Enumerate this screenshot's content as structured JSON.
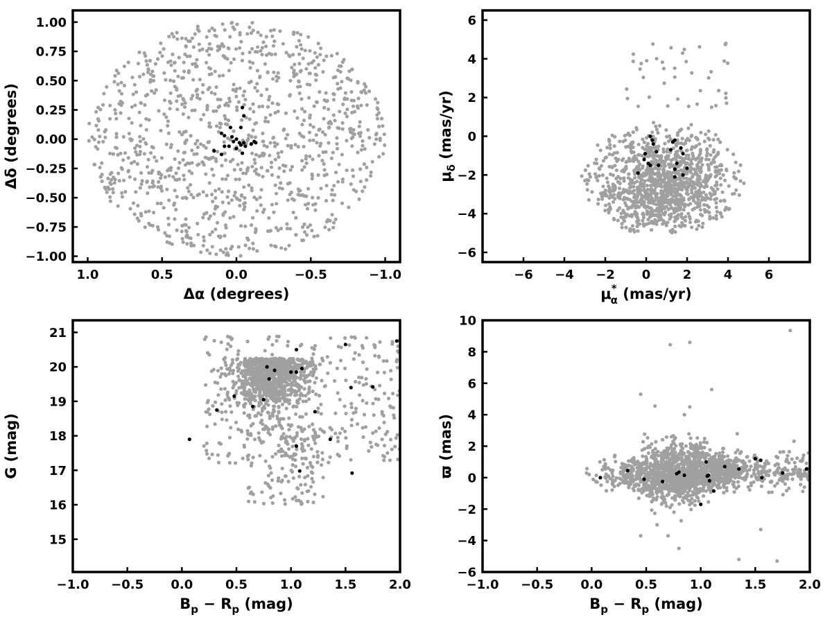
{
  "chart_data": [
    {
      "type": "scatter",
      "xlabel": "Δα (degrees)",
      "ylabel": "Δδ (degrees)",
      "xlim": [
        1.1,
        -1.1
      ],
      "ylim": [
        -1.05,
        1.1
      ],
      "xticks": [
        1.0,
        0.5,
        0.0,
        -0.5,
        -1.0
      ],
      "xtick_labels": [
        "1.0",
        "0.5",
        "0.0",
        "−0.5",
        "−1.0"
      ],
      "yticks": [
        -1.0,
        -0.75,
        -0.5,
        -0.25,
        0.0,
        0.25,
        0.5,
        0.75,
        1.0
      ],
      "ytick_labels": [
        "−1.00",
        "−0.75",
        "−0.50",
        "−0.25",
        "0.00",
        "0.25",
        "0.50",
        "0.75",
        "1.00"
      ],
      "series": [
        {
          "color": "#a0a0a0",
          "distribution": "uniform disk radius 1.0 degree centred at (0,0)",
          "count": 1100
        },
        {
          "color": "#000000",
          "points": [
            [
              0.1,
              0.05
            ],
            [
              0.08,
              0.03
            ],
            [
              0.0,
              0.0
            ],
            [
              -0.02,
              -0.03
            ],
            [
              0.05,
              -0.06
            ],
            [
              -0.03,
              0.1
            ],
            [
              -0.04,
              0.27
            ],
            [
              -0.05,
              0.2
            ],
            [
              0.15,
              -0.1
            ],
            [
              0.08,
              -0.06
            ],
            [
              0.1,
              -0.13
            ],
            [
              -0.04,
              -0.12
            ],
            [
              -0.05,
              -0.03
            ],
            [
              -0.1,
              -0.04
            ],
            [
              -0.12,
              -0.02
            ],
            [
              -0.13,
              -0.03
            ],
            [
              -0.03,
              -0.05
            ],
            [
              0.02,
              -0.02
            ],
            [
              0.04,
              0.1
            ],
            [
              0.0,
              -0.08
            ],
            [
              -0.06,
              -0.06
            ],
            [
              0.03,
              0.02
            ]
          ]
        }
      ]
    },
    {
      "type": "scatter",
      "xlabel_main": "μ",
      "xlabel_sub": "α",
      "xlabel_sup": "*",
      "xlabel_rest": " (mas/yr)",
      "ylabel_main": "μ",
      "ylabel_sub": "δ",
      "ylabel_rest": " (mas/yr)",
      "xlim": [
        -8,
        8
      ],
      "ylim": [
        -6.5,
        6.5
      ],
      "xticks": [
        -6,
        -4,
        -2,
        0,
        2,
        4,
        6
      ],
      "xtick_labels": [
        "−6",
        "−4",
        "−2",
        "0",
        "2",
        "4",
        "6"
      ],
      "yticks": [
        -6,
        -4,
        -2,
        0,
        2,
        4,
        6
      ],
      "ytick_labels": [
        "−6",
        "−4",
        "−2",
        "0",
        "2",
        "4",
        "6"
      ],
      "series": [
        {
          "color": "#a0a0a0",
          "distribution": "field stars, cloud centred near (1,-2.5), radius ~4 mas/yr, denser toward bottom",
          "count": 1200
        },
        {
          "color": "#000000",
          "points": [
            [
              -0.4,
              -1.9
            ],
            [
              -0.1,
              -1.2
            ],
            [
              -0.05,
              -0.9
            ],
            [
              0.1,
              -1.4
            ],
            [
              0.2,
              -1.5
            ],
            [
              0.3,
              -0.2
            ],
            [
              0.35,
              -0.4
            ],
            [
              0.5,
              -0.8
            ],
            [
              0.6,
              -1.5
            ],
            [
              1.2,
              -0.7
            ],
            [
              1.3,
              -0.3
            ],
            [
              1.4,
              -0.2
            ],
            [
              1.4,
              -1.7
            ],
            [
              1.4,
              -2.1
            ],
            [
              1.7,
              -0.6
            ],
            [
              1.8,
              -0.9
            ],
            [
              1.8,
              -2.0
            ],
            [
              2.0,
              -1.65
            ],
            [
              1.5,
              -1.4
            ],
            [
              0.2,
              0.0
            ]
          ]
        }
      ]
    },
    {
      "type": "scatter",
      "xlabel_main": "B",
      "xlabel_sub1": "p",
      "xlabel_mid": " − R",
      "xlabel_sub2": "p",
      "xlabel_rest": " (mag)",
      "ylabel": "G (mag)",
      "xlim": [
        -1.0,
        2.0
      ],
      "ylim": [
        14.05,
        21.35
      ],
      "xticks": [
        -1.0,
        -0.5,
        0.0,
        0.5,
        1.0,
        1.5,
        2.0
      ],
      "xtick_labels": [
        "−1.0",
        "−0.5",
        "0.0",
        "0.5",
        "1.0",
        "1.5",
        "2.0"
      ],
      "yticks": [
        15,
        16,
        17,
        18,
        19,
        20,
        21
      ],
      "ytick_labels": [
        "15",
        "16",
        "17",
        "18",
        "19",
        "20",
        "21"
      ],
      "series": [
        {
          "color": "#a0a0a0",
          "distribution": "colour-magnitude diagram of field stars, dense near Bp-Rp 0.8, G 20.3",
          "count": 1200
        },
        {
          "color": "#000000",
          "points": [
            [
              0.07,
              17.9
            ],
            [
              0.32,
              18.75
            ],
            [
              0.48,
              19.15
            ],
            [
              0.65,
              18.85
            ],
            [
              0.75,
              19.05
            ],
            [
              0.78,
              20.0
            ],
            [
              0.8,
              19.65
            ],
            [
              0.85,
              19.9
            ],
            [
              1.0,
              19.85
            ],
            [
              1.05,
              19.85
            ],
            [
              1.05,
              20.5
            ],
            [
              1.1,
              19.95
            ],
            [
              1.05,
              17.7
            ],
            [
              1.08,
              16.98
            ],
            [
              1.22,
              18.7
            ],
            [
              1.36,
              17.9
            ],
            [
              1.5,
              20.65
            ],
            [
              1.55,
              19.4
            ],
            [
              1.56,
              16.92
            ],
            [
              1.75,
              19.42
            ],
            [
              1.97,
              20.75
            ]
          ]
        }
      ]
    },
    {
      "type": "scatter",
      "xlabel_main": "B",
      "xlabel_sub1": "p",
      "xlabel_mid": " − R",
      "xlabel_sub2": "p",
      "xlabel_rest": " (mag)",
      "ylabel": "ϖ (mas)",
      "xlim": [
        -1.0,
        2.0
      ],
      "ylim": [
        -6.0,
        10.0
      ],
      "xticks": [
        -1.0,
        -0.5,
        0.0,
        0.5,
        1.0,
        1.5,
        2.0
      ],
      "xtick_labels": [
        "−1.0",
        "−0.5",
        "0.0",
        "0.5",
        "1.0",
        "1.5",
        "2.0"
      ],
      "yticks": [
        -6,
        -4,
        -2,
        0,
        2,
        4,
        6,
        8,
        10
      ],
      "ytick_labels": [
        "−6",
        "−4",
        "−2",
        "0",
        "2",
        "4",
        "6",
        "8",
        "10"
      ],
      "series": [
        {
          "color": "#a0a0a0",
          "distribution": "parallax vs colour, band centred near ϖ 0, wider scatter at Bp-Rp 0.5-1.0",
          "count": 1400
        },
        {
          "color": "#000000",
          "points": [
            [
              0.08,
              0.0
            ],
            [
              0.33,
              0.45
            ],
            [
              0.48,
              -0.1
            ],
            [
              0.65,
              -0.25
            ],
            [
              0.78,
              0.25
            ],
            [
              0.8,
              0.35
            ],
            [
              0.85,
              0.15
            ],
            [
              1.0,
              -1.7
            ],
            [
              1.05,
              1.0
            ],
            [
              1.06,
              0.1
            ],
            [
              1.08,
              -0.2
            ],
            [
              1.12,
              -0.85
            ],
            [
              1.22,
              0.7
            ],
            [
              1.35,
              0.55
            ],
            [
              1.5,
              1.2
            ],
            [
              1.55,
              1.1
            ],
            [
              1.56,
              0.0
            ],
            [
              1.75,
              0.3
            ],
            [
              1.97,
              0.55
            ],
            [
              1.07,
              0.15
            ]
          ]
        }
      ]
    }
  ]
}
